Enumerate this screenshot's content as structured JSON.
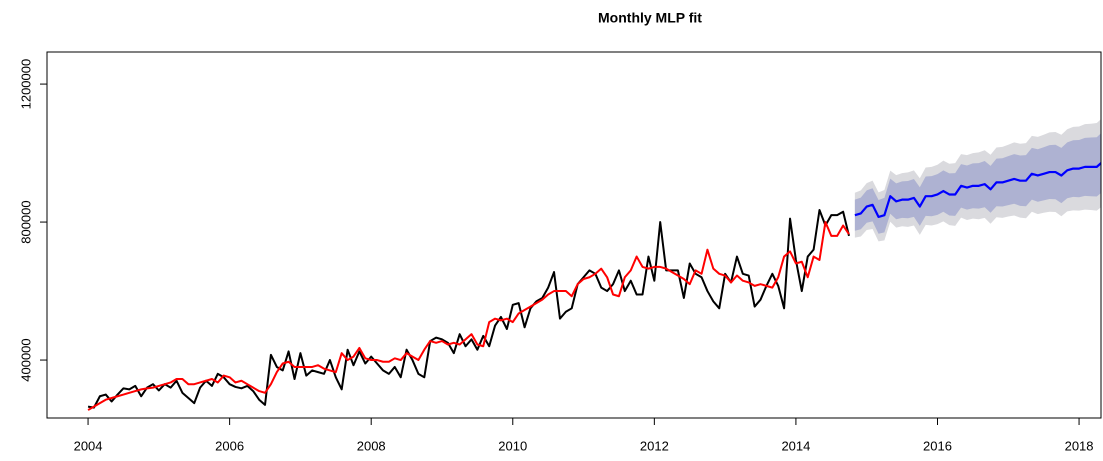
{
  "chart_data": {
    "type": "line",
    "title": "Monthly MLP fit",
    "xlim": [
      2003.42,
      2018.31
    ],
    "ylim": [
      232000,
      1293000
    ],
    "xticks": [
      2004,
      2006,
      2008,
      2010,
      2012,
      2014,
      2016,
      2018
    ],
    "yticks": [
      400000,
      800000,
      1200000
    ],
    "x": [
      2004.0,
      2004.083,
      2004.167,
      2004.25,
      2004.333,
      2004.417,
      2004.5,
      2004.583,
      2004.667,
      2004.75,
      2004.833,
      2004.917,
      2005.0,
      2005.083,
      2005.167,
      2005.25,
      2005.333,
      2005.417,
      2005.5,
      2005.583,
      2005.667,
      2005.75,
      2005.833,
      2005.917,
      2006.0,
      2006.083,
      2006.167,
      2006.25,
      2006.333,
      2006.417,
      2006.5,
      2006.583,
      2006.667,
      2006.75,
      2006.833,
      2006.917,
      2007.0,
      2007.083,
      2007.167,
      2007.25,
      2007.333,
      2007.417,
      2007.5,
      2007.583,
      2007.667,
      2007.75,
      2007.833,
      2007.917,
      2008.0,
      2008.083,
      2008.167,
      2008.25,
      2008.333,
      2008.417,
      2008.5,
      2008.583,
      2008.667,
      2008.75,
      2008.833,
      2008.917,
      2009.0,
      2009.083,
      2009.167,
      2009.25,
      2009.333,
      2009.417,
      2009.5,
      2009.583,
      2009.667,
      2009.75,
      2009.833,
      2009.917,
      2010.0,
      2010.083,
      2010.167,
      2010.25,
      2010.333,
      2010.417,
      2010.5,
      2010.583,
      2010.667,
      2010.75,
      2010.833,
      2010.917,
      2011.0,
      2011.083,
      2011.167,
      2011.25,
      2011.333,
      2011.417,
      2011.5,
      2011.583,
      2011.667,
      2011.75,
      2011.833,
      2011.917,
      2012.0,
      2012.083,
      2012.167,
      2012.25,
      2012.333,
      2012.417,
      2012.5,
      2012.583,
      2012.667,
      2012.75,
      2012.833,
      2012.917,
      2013.0,
      2013.083,
      2013.167,
      2013.25,
      2013.333,
      2013.417,
      2013.5,
      2013.583,
      2013.667,
      2013.75,
      2013.833,
      2013.917,
      2014.0,
      2014.083,
      2014.167,
      2014.25,
      2014.333,
      2014.417,
      2014.5,
      2014.583,
      2014.667,
      2014.75
    ],
    "series": [
      {
        "color": "#000000",
        "values": [
          265000,
          262000,
          295000,
          300000,
          280000,
          300000,
          318000,
          315000,
          325000,
          295000,
          320000,
          330000,
          312000,
          330000,
          320000,
          340000,
          305000,
          290000,
          275000,
          320000,
          340000,
          325000,
          360000,
          350000,
          330000,
          322000,
          318000,
          325000,
          310000,
          285000,
          270000,
          415000,
          380000,
          370000,
          425000,
          345000,
          420000,
          355000,
          370000,
          365000,
          360000,
          400000,
          350000,
          315000,
          430000,
          385000,
          425000,
          390000,
          410000,
          390000,
          370000,
          360000,
          380000,
          350000,
          430000,
          400000,
          360000,
          350000,
          455000,
          465000,
          460000,
          450000,
          420000,
          475000,
          440000,
          460000,
          430000,
          470000,
          440000,
          500000,
          525000,
          490000,
          560000,
          565000,
          495000,
          550000,
          570000,
          580000,
          610000,
          655000,
          520000,
          540000,
          550000,
          620000,
          640000,
          660000,
          650000,
          610000,
          600000,
          620000,
          660000,
          600000,
          630000,
          590000,
          590000,
          700000,
          630000,
          800000,
          660000,
          660000,
          660000,
          580000,
          680000,
          650000,
          640000,
          600000,
          570000,
          550000,
          650000,
          625000,
          700000,
          650000,
          645000,
          555000,
          575000,
          615000,
          650000,
          615000,
          550000,
          810000,
          690000,
          600000,
          700000,
          720000,
          835000,
          790000,
          820000,
          820000,
          830000,
          760000
        ]
      },
      {
        "color": "#ff0000",
        "values": [
          255000,
          265000,
          275000,
          285000,
          290000,
          295000,
          300000,
          305000,
          310000,
          315000,
          318000,
          320000,
          325000,
          330000,
          335000,
          345000,
          345000,
          330000,
          330000,
          335000,
          340000,
          345000,
          335000,
          355000,
          350000,
          335000,
          340000,
          330000,
          320000,
          310000,
          305000,
          330000,
          365000,
          390000,
          395000,
          380000,
          380000,
          380000,
          380000,
          385000,
          375000,
          370000,
          365000,
          420000,
          400000,
          410000,
          435000,
          405000,
          400000,
          400000,
          395000,
          395000,
          405000,
          400000,
          420000,
          410000,
          400000,
          430000,
          455000,
          450000,
          455000,
          445000,
          450000,
          445000,
          460000,
          475000,
          445000,
          440000,
          510000,
          520000,
          515000,
          520000,
          510000,
          535000,
          545000,
          555000,
          565000,
          575000,
          590000,
          600000,
          600000,
          600000,
          585000,
          620000,
          635000,
          640000,
          650000,
          665000,
          640000,
          590000,
          585000,
          640000,
          660000,
          700000,
          670000,
          665000,
          670000,
          670000,
          665000,
          655000,
          645000,
          635000,
          620000,
          660000,
          650000,
          720000,
          665000,
          650000,
          645000,
          625000,
          645000,
          630000,
          625000,
          615000,
          620000,
          615000,
          610000,
          640000,
          700000,
          715000,
          680000,
          685000,
          640000,
          700000,
          690000,
          800000,
          760000,
          760000,
          790000,
          765000
        ]
      }
    ],
    "forecast": {
      "x": [
        2014.833,
        2014.917,
        2015.0,
        2015.083,
        2015.167,
        2015.25,
        2015.333,
        2015.417,
        2015.5,
        2015.583,
        2015.667,
        2015.75,
        2015.833,
        2015.917,
        2016.0,
        2016.083,
        2016.167,
        2016.25,
        2016.333,
        2016.417,
        2016.5,
        2016.583,
        2016.667,
        2016.75,
        2016.833,
        2016.917,
        2017.0,
        2017.083,
        2017.167,
        2017.25,
        2017.333,
        2017.417,
        2017.5,
        2017.583,
        2017.667,
        2017.75,
        2017.833,
        2017.917,
        2018.0,
        2018.083,
        2018.167,
        2018.25,
        2018.333
      ],
      "bands": [
        {
          "color": "#dadade",
          "lower": [
            755000,
            758000,
            777000,
            780000,
            744000,
            747000,
            801000,
            784000,
            788000,
            786000,
            790000,
            763000,
            792000,
            790000,
            794000,
            802000,
            791000,
            789000,
            813000,
            806000,
            810000,
            808000,
            812000,
            795000,
            814000,
            812000,
            816000,
            819000,
            813000,
            811000,
            830000,
            823000,
            827000,
            830000,
            829000,
            817000,
            831000,
            834000,
            833000,
            836000,
            835000,
            833000,
            847000
          ],
          "upper": [
            885000,
            892000,
            913000,
            920000,
            886000,
            893000,
            949000,
            936000,
            942000,
            944000,
            950000,
            927000,
            958000,
            960000,
            966000,
            978000,
            969000,
            971000,
            997000,
            994000,
            1000000,
            1002000,
            1008000,
            995000,
            1016000,
            1018000,
            1024000,
            1031000,
            1027000,
            1029000,
            1050000,
            1047000,
            1053000,
            1060000,
            1061000,
            1053000,
            1069000,
            1076000,
            1077000,
            1084000,
            1085000,
            1087000,
            1103000
          ]
        },
        {
          "color": "#aeb2d2",
          "lower": [
            775000,
            779000,
            798000,
            802000,
            766000,
            770000,
            824000,
            808000,
            812000,
            811000,
            815000,
            789000,
            818000,
            817000,
            821000,
            830000,
            819000,
            818000,
            842000,
            836000,
            840000,
            839000,
            843000,
            827000,
            846000,
            845000,
            849000,
            853000,
            847000,
            846000,
            865000,
            859000,
            863000,
            867000,
            866000,
            855000,
            869000,
            873000,
            872000,
            876000,
            875000,
            874000,
            888000
          ],
          "upper": [
            865000,
            871000,
            892000,
            898000,
            864000,
            870000,
            926000,
            912000,
            918000,
            919000,
            925000,
            901000,
            932000,
            933000,
            939000,
            950000,
            941000,
            942000,
            968000,
            964000,
            970000,
            971000,
            977000,
            963000,
            984000,
            985000,
            991000,
            997000,
            993000,
            994000,
            1015000,
            1011000,
            1017000,
            1023000,
            1024000,
            1015000,
            1031000,
            1037000,
            1038000,
            1044000,
            1045000,
            1046000,
            1062000
          ]
        }
      ],
      "series": [
        {
          "color": "#0000ff",
          "values": [
            820000,
            825000,
            845000,
            850000,
            815000,
            820000,
            875000,
            860000,
            865000,
            865000,
            870000,
            845000,
            875000,
            875000,
            880000,
            890000,
            880000,
            880000,
            905000,
            900000,
            905000,
            905000,
            910000,
            895000,
            915000,
            915000,
            920000,
            925000,
            920000,
            920000,
            940000,
            935000,
            940000,
            945000,
            945000,
            935000,
            950000,
            955000,
            955000,
            960000,
            960000,
            960000,
            975000
          ]
        }
      ]
    }
  }
}
